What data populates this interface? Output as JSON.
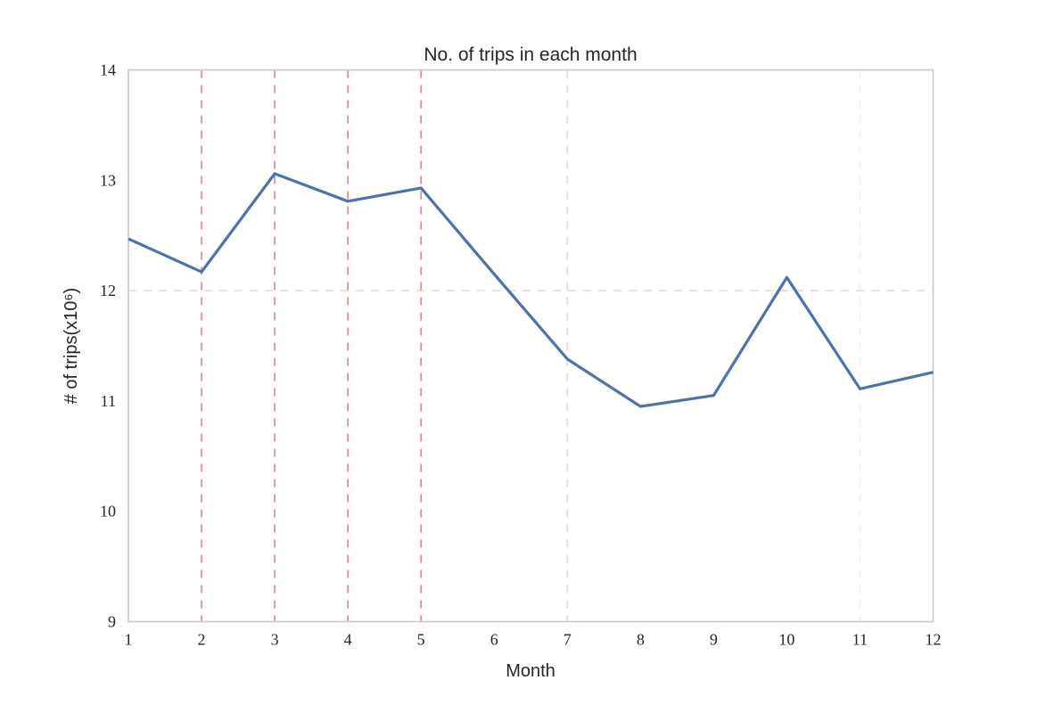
{
  "chart_data": {
    "type": "line",
    "title": "No. of trips in each month",
    "xlabel": "Month",
    "ylabel": "# of trips(x10⁶)",
    "x": [
      1,
      2,
      3,
      4,
      5,
      6,
      7,
      8,
      9,
      10,
      11,
      12
    ],
    "values": [
      12.47,
      12.17,
      13.06,
      12.81,
      12.93,
      12.15,
      11.38,
      10.95,
      11.05,
      12.12,
      11.11,
      11.26
    ],
    "xlim": [
      1,
      12
    ],
    "ylim": [
      9,
      14
    ],
    "xticks": [
      "1",
      "2",
      "3",
      "4",
      "5",
      "6",
      "7",
      "8",
      "9",
      "10",
      "11",
      "12"
    ],
    "yticks": [
      "9",
      "10",
      "11",
      "12",
      "13",
      "14"
    ],
    "grid": false,
    "legend_position": "none",
    "line_color": "#4c72b0",
    "spine_color": "#cdcdcd",
    "text_color": "#262626",
    "vlines": [
      {
        "x": 2,
        "color": "#ec827e"
      },
      {
        "x": 3,
        "color": "#ec827e"
      },
      {
        "x": 4,
        "color": "#ec827e"
      },
      {
        "x": 5,
        "color": "#ec827e"
      },
      {
        "x": 7,
        "color": "#f6d0cc"
      },
      {
        "x": 11,
        "color": "#fceae8"
      }
    ],
    "hlines": [
      {
        "y": 12,
        "color": "#f8d7d3"
      }
    ]
  }
}
